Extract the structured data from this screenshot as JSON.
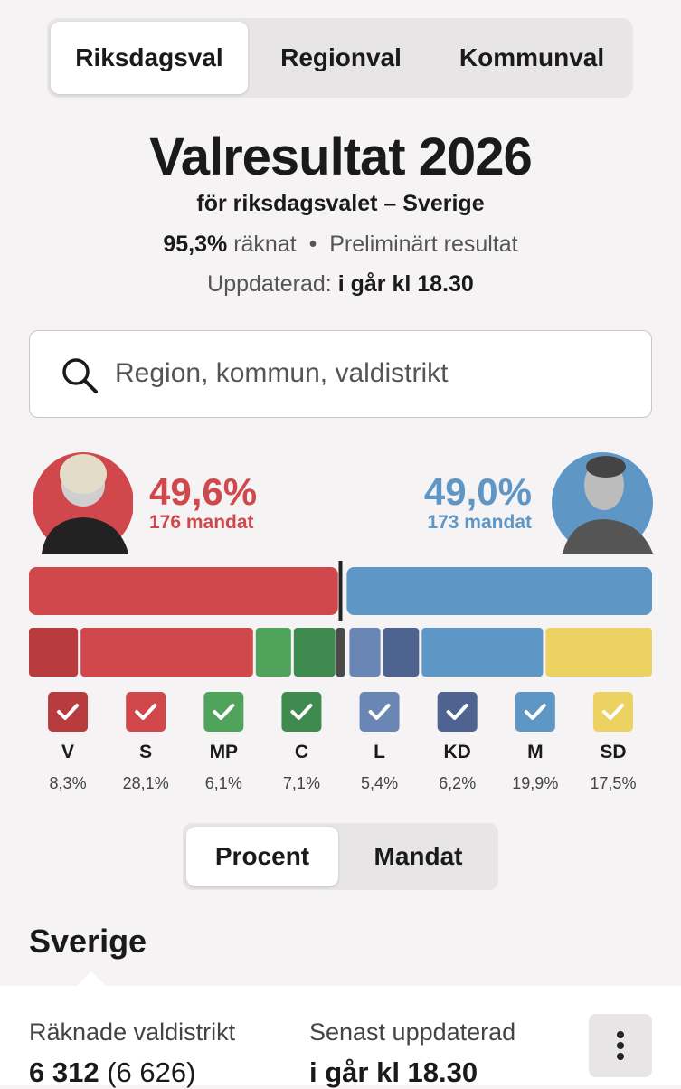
{
  "tabs": {
    "items": [
      "Riksdagsval",
      "Regionval",
      "Kommunval"
    ]
  },
  "header": {
    "title": "Valresultat 2026",
    "subtitle": "för riksdagsvalet – Sverige",
    "counted": "95,3%",
    "counted_label": "räknat",
    "status": "Preliminärt resultat",
    "updated_label": "Uppdaterad:",
    "updated": "i går kl 18.30"
  },
  "search": {
    "placeholder": "Region, kommun, valdistrikt"
  },
  "blocs": {
    "left": {
      "share": 49.6,
      "share_label": "49,6%",
      "seats": "176 mandat",
      "color": "#d0484b"
    },
    "right": {
      "share": 49.0,
      "share_label": "49,0%",
      "seats": "173 mandat",
      "color": "#5e97c6"
    }
  },
  "parties": [
    {
      "name": "V",
      "share": 8.3,
      "share_label": "8,3%",
      "color": "#b83c3e",
      "bloc": "left"
    },
    {
      "name": "S",
      "share": 28.1,
      "share_label": "28,1%",
      "color": "#d0484b",
      "bloc": "left"
    },
    {
      "name": "MP",
      "share": 6.1,
      "share_label": "6,1%",
      "color": "#4fa35a",
      "bloc": "left"
    },
    {
      "name": "C",
      "share": 7.1,
      "share_label": "7,1%",
      "color": "#3e8a4f",
      "bloc": "left"
    },
    {
      "name": "L",
      "share": 5.4,
      "share_label": "5,4%",
      "color": "#6a86b5",
      "bloc": "right"
    },
    {
      "name": "KD",
      "share": 6.2,
      "share_label": "6,2%",
      "color": "#4f6390",
      "bloc": "right"
    },
    {
      "name": "M",
      "share": 19.9,
      "share_label": "19,9%",
      "color": "#5e97c6",
      "bloc": "right"
    },
    {
      "name": "SD",
      "share": 17.5,
      "share_label": "17,5%",
      "color": "#ecd163",
      "bloc": "right"
    }
  ],
  "toggle": {
    "items": [
      "Procent",
      "Mandat"
    ]
  },
  "section": {
    "title": "Sverige"
  },
  "stats": {
    "districts_label": "Räknade valdistrikt",
    "districts": "6 312",
    "districts_total": "(6 626)",
    "updated_label": "Senast uppdaterad",
    "updated": "i går kl 18.30"
  }
}
